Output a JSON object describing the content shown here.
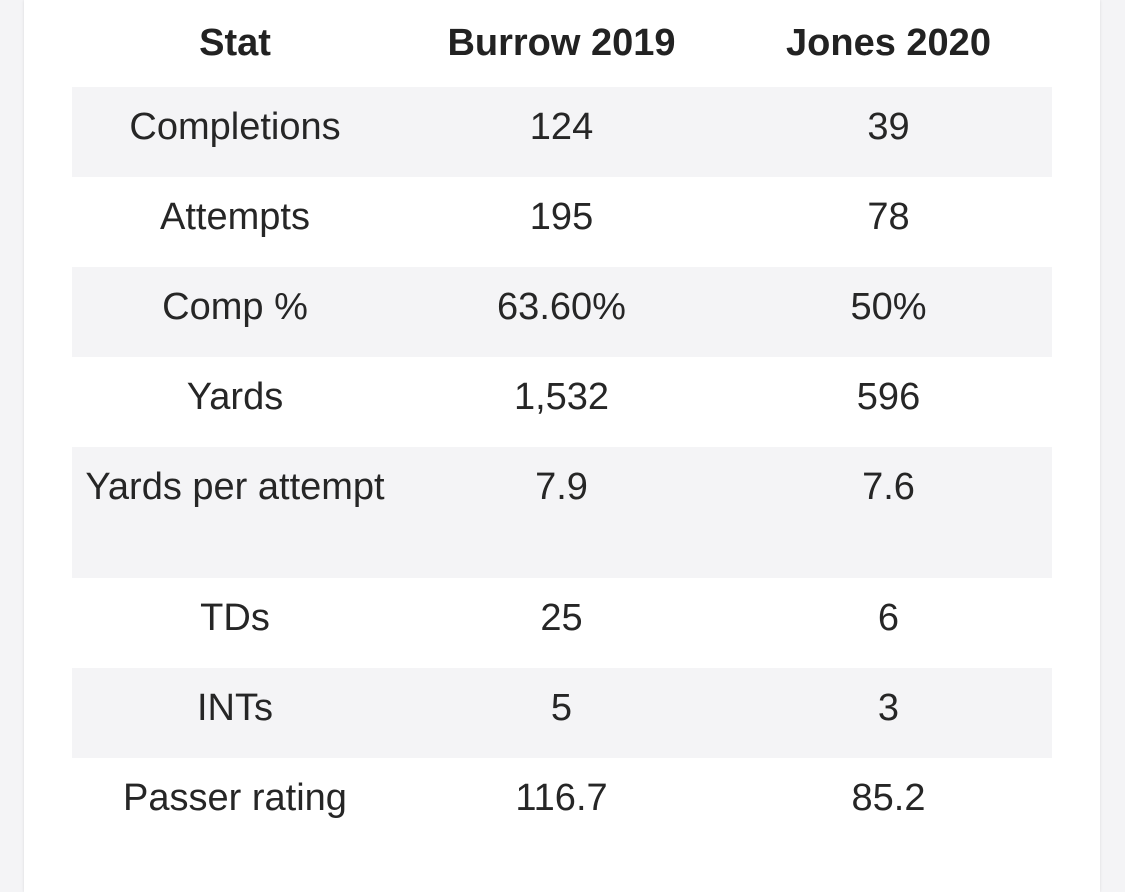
{
  "table": {
    "headers": [
      "Stat",
      "Burrow 2019",
      "Jones 2020"
    ],
    "rows": [
      {
        "stat": "Completions",
        "burrow": "124",
        "jones": "39"
      },
      {
        "stat": "Attempts",
        "burrow": "195",
        "jones": "78"
      },
      {
        "stat": "Comp %",
        "burrow": "63.60%",
        "jones": "50%"
      },
      {
        "stat": "Yards",
        "burrow": "1,532",
        "jones": "596"
      },
      {
        "stat": "Yards per attempt",
        "burrow": "7.9",
        "jones": "7.6"
      },
      {
        "stat": "TDs",
        "burrow": "25",
        "jones": "6"
      },
      {
        "stat": "INTs",
        "burrow": "5",
        "jones": "3"
      },
      {
        "stat": "Passer rating",
        "burrow": "116.7",
        "jones": "85.2"
      }
    ]
  },
  "colors": {
    "page_background": "#f4f4f6",
    "card_background": "#ffffff",
    "stripe": "#f4f4f6",
    "text": "#222222"
  }
}
